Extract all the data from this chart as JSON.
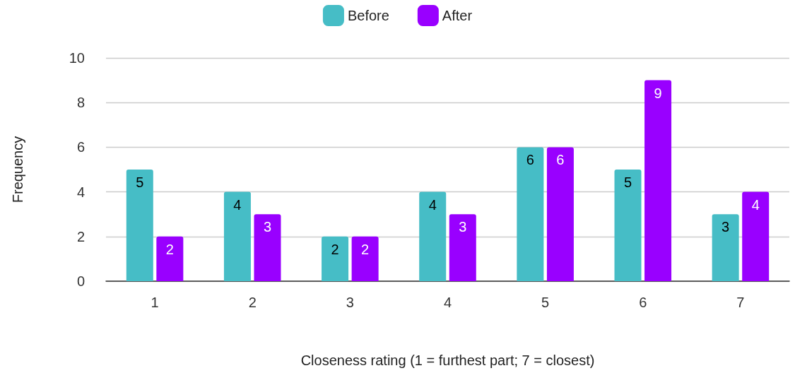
{
  "chart_data": {
    "type": "bar",
    "xlabel": "Closeness rating (1 = furthest part; 7 = closest)",
    "ylabel": "Frequency",
    "categories": [
      "1",
      "2",
      "3",
      "4",
      "5",
      "6",
      "7"
    ],
    "series": [
      {
        "name": "Before",
        "color": "#46bdc6",
        "values": [
          5,
          4,
          2,
          4,
          6,
          5,
          3
        ]
      },
      {
        "name": "After",
        "color": "#9900ff",
        "values": [
          2,
          3,
          2,
          3,
          6,
          9,
          4
        ]
      }
    ],
    "ylim": [
      0,
      10
    ],
    "yticks": [
      0,
      2,
      4,
      6,
      8,
      10
    ],
    "grid": "y",
    "legend": "top",
    "data_labels": true
  }
}
